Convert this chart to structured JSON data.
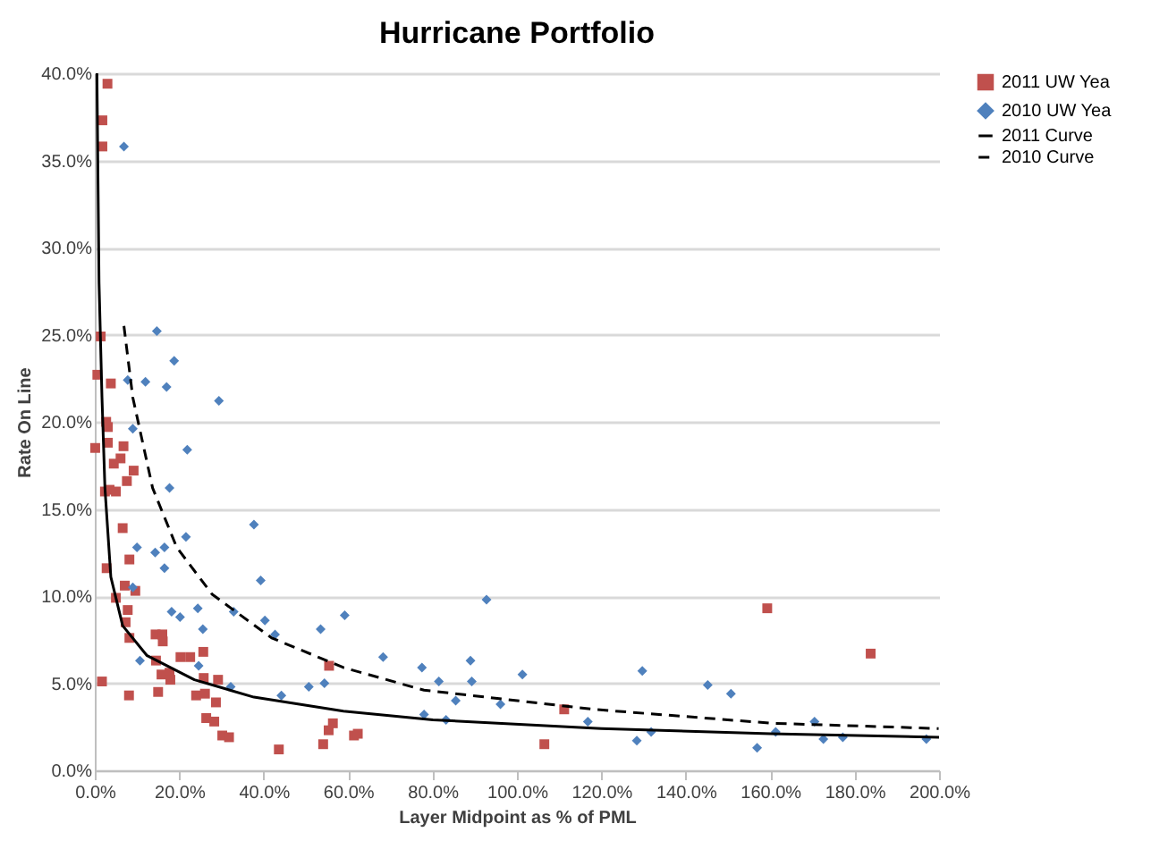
{
  "chart_data": {
    "type": "scatter",
    "title": "Hurricane Portfolio",
    "xlabel": "Layer Midpoint as % of PML",
    "ylabel": "Rate On Line",
    "xlim": [
      0,
      200
    ],
    "ylim": [
      0,
      40
    ],
    "xticks": [
      {
        "value": 0,
        "label": "0.0%"
      },
      {
        "value": 20,
        "label": "20.0%"
      },
      {
        "value": 40,
        "label": "40.0%"
      },
      {
        "value": 60,
        "label": "60.0%"
      },
      {
        "value": 80,
        "label": "80.0%"
      },
      {
        "value": 100,
        "label": "100.0%"
      },
      {
        "value": 120,
        "label": "120.0%"
      },
      {
        "value": 140,
        "label": "140.0%"
      },
      {
        "value": 160,
        "label": "160.0%"
      },
      {
        "value": 180,
        "label": "180.0%"
      },
      {
        "value": 200,
        "label": "200.0%"
      }
    ],
    "yticks": [
      {
        "value": 0,
        "label": "0.0%"
      },
      {
        "value": 5,
        "label": "5.0%"
      },
      {
        "value": 10,
        "label": "10.0%"
      },
      {
        "value": 15,
        "label": "15.0%"
      },
      {
        "value": 20,
        "label": "20.0%"
      },
      {
        "value": 25,
        "label": "25.0%"
      },
      {
        "value": 30,
        "label": "30.0%"
      },
      {
        "value": 35,
        "label": "35.0%"
      },
      {
        "value": 40,
        "label": "40.0%"
      }
    ],
    "grid": "y",
    "legend": "right",
    "series": [
      {
        "name": "2011 UW Yea",
        "type": "scatter",
        "marker": "square",
        "color": "#c0504d",
        "x": [
          3.0,
          1.8,
          1.8,
          1.4,
          0.6,
          3.8,
          2.7,
          3.1,
          3.1,
          0.1,
          6.8,
          6.1,
          4.5,
          9.2,
          7.6,
          2.4,
          3.5,
          5.0,
          6.6,
          8.2,
          2.8,
          7.1,
          9.6,
          5.0,
          7.8,
          7.3,
          8.2,
          14.4,
          16.0,
          16.1,
          14.5,
          20.3,
          22.6,
          25.7,
          1.7,
          8.1,
          15.8,
          17.7,
          17.9,
          15.0,
          29.2,
          25.8,
          24.0,
          26.1,
          28.7,
          26.4,
          28.3,
          30.2,
          31.8,
          43.6,
          54.1,
          56.4,
          55.4,
          61.4,
          62.3,
          55.5,
          111.2,
          106.5,
          159.3,
          183.8
        ],
        "values": [
          39.4,
          37.3,
          35.8,
          24.9,
          22.7,
          22.2,
          20.0,
          19.7,
          18.8,
          18.5,
          18.6,
          17.9,
          17.6,
          17.2,
          16.6,
          16.0,
          16.1,
          16.0,
          13.9,
          12.1,
          11.6,
          10.6,
          10.3,
          9.9,
          9.2,
          8.5,
          7.6,
          7.8,
          7.8,
          7.4,
          6.3,
          6.5,
          6.5,
          6.8,
          5.1,
          4.3,
          5.5,
          5.6,
          5.2,
          4.5,
          5.2,
          5.3,
          4.3,
          4.4,
          3.9,
          3.0,
          2.8,
          2.0,
          1.9,
          1.2,
          1.5,
          2.7,
          2.3,
          2.0,
          2.1,
          6.0,
          3.5,
          1.5,
          9.3,
          6.7
        ]
      },
      {
        "name": "2010 UW Yea",
        "type": "scatter",
        "marker": "diamond",
        "color": "#4f81bd",
        "x": [
          6.9,
          14.7,
          18.8,
          7.8,
          12.0,
          17.0,
          29.4,
          9.0,
          21.9,
          17.7,
          37.7,
          21.6,
          10.0,
          14.3,
          16.5,
          16.5,
          9.0,
          39.3,
          18.2,
          20.2,
          24.4,
          32.9,
          25.6,
          40.3,
          42.7,
          53.5,
          59.2,
          10.7,
          24.6,
          32.2,
          44.2,
          50.7,
          54.4,
          68.3,
          77.5,
          78.0,
          81.5,
          89.0,
          89.3,
          92.8,
          85.5,
          83.2,
          96.1,
          101.3,
          116.8,
          128.4,
          129.7,
          131.8,
          145.2,
          150.7,
          156.9,
          161.3,
          170.5,
          172.6,
          177.2,
          197.0
        ],
        "values": [
          35.8,
          25.2,
          23.5,
          22.4,
          22.3,
          22.0,
          21.2,
          19.6,
          18.4,
          16.2,
          14.1,
          13.4,
          12.8,
          12.5,
          12.8,
          11.6,
          10.5,
          10.9,
          9.1,
          8.8,
          9.3,
          9.1,
          8.1,
          8.6,
          7.8,
          8.1,
          8.9,
          6.3,
          6.0,
          4.8,
          4.3,
          4.8,
          5.0,
          6.5,
          5.9,
          3.2,
          5.1,
          6.3,
          5.1,
          9.8,
          4.0,
          2.9,
          3.8,
          5.5,
          2.8,
          1.7,
          5.7,
          2.2,
          4.9,
          4.4,
          1.3,
          2.2,
          2.8,
          1.8,
          1.9,
          1.8
        ]
      },
      {
        "name": "2011 Curve",
        "type": "line",
        "line_style": "solid",
        "color": "#000000",
        "x": [
          0.5,
          1.0,
          1.7,
          2.4,
          3.8,
          6.6,
          12.3,
          23.6,
          37.7,
          58.9,
          80.1,
          120,
          160,
          200
        ],
        "values": [
          40.0,
          28.0,
          21.4,
          16.2,
          11.1,
          8.3,
          6.6,
          5.2,
          4.2,
          3.4,
          2.9,
          2.4,
          2.1,
          1.9
        ]
      },
      {
        "name": "2010 Curve",
        "type": "line",
        "line_style": "dashed",
        "color": "#000000",
        "x": [
          6.9,
          9.0,
          13.7,
          19.4,
          27.8,
          41.9,
          58.9,
          78.0,
          118.2,
          160.6,
          199.9
        ],
        "values": [
          25.5,
          21.4,
          16.2,
          12.8,
          10.1,
          7.6,
          5.9,
          4.6,
          3.5,
          2.7,
          2.4
        ]
      }
    ]
  }
}
